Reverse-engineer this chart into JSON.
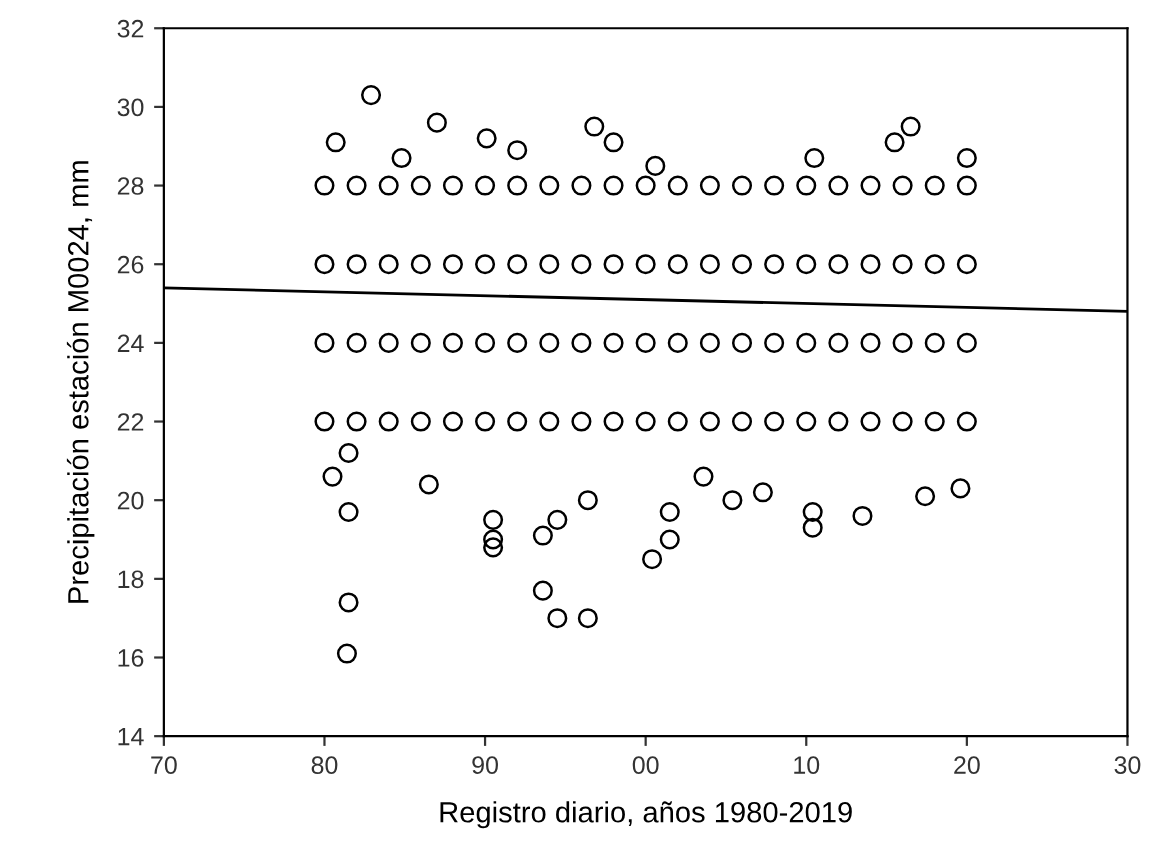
{
  "chart_data": {
    "type": "scatter",
    "xlabel": "Registro diario, años 1980-2019",
    "ylabel": "Precipitación estación M0024, mm",
    "xlim": [
      1970,
      2030
    ],
    "xticks": [
      {
        "value": 1970,
        "label": "70"
      },
      {
        "value": 1980,
        "label": "80"
      },
      {
        "value": 1990,
        "label": "90"
      },
      {
        "value": 2000,
        "label": "00"
      },
      {
        "value": 2010,
        "label": "10"
      },
      {
        "value": 2020,
        "label": "20"
      },
      {
        "value": 2030,
        "label": "30"
      }
    ],
    "ylim": [
      14,
      32
    ],
    "yticks": [
      14,
      16,
      18,
      20,
      22,
      24,
      26,
      28,
      30,
      32
    ],
    "grid": false,
    "legend": false,
    "marker": "circle",
    "series": [
      {
        "color": "#000000",
        "x": [
          1980,
          1982,
          1984,
          1986,
          1988,
          1990,
          1992,
          1994,
          1996,
          1998,
          2000,
          2002,
          2004,
          2006,
          2008,
          2010,
          2012,
          2014,
          2016,
          2018,
          2020,
          1980,
          1982,
          1984,
          1986,
          1988,
          1990,
          1992,
          1994,
          1996,
          1998,
          2000,
          2002,
          2004,
          2006,
          2008,
          2010,
          2012,
          2014,
          2016,
          2018,
          2020,
          1980,
          1982,
          1984,
          1986,
          1988,
          1990,
          1992,
          1994,
          1996,
          1998,
          2000,
          2002,
          2004,
          2006,
          2008,
          2010,
          2012,
          2014,
          2016,
          2018,
          2020,
          1980,
          1982,
          1984,
          1986,
          1988,
          1990,
          1992,
          1994,
          1996,
          1998,
          2000,
          2002,
          2004,
          2006,
          2008,
          2010,
          2012,
          2014,
          2016,
          2018,
          2020,
          1980.5,
          1981.5,
          1981.5,
          1981.4,
          1981.5,
          1982.9,
          1986.5,
          1990.5,
          1990.5,
          1990.5,
          1993.6,
          1993.6,
          1994.5,
          1996.4,
          1996.4,
          1994.5,
          2000.4,
          2001.5,
          2001.5,
          2003.6,
          2005.4,
          2007.3,
          2010.4,
          2010.4,
          2013.5,
          2017.4,
          2019.6,
          1987,
          1990.1,
          1992,
          1996.8,
          1998,
          2000.6,
          2010.5,
          2016.5,
          2015.5,
          2020,
          1980.7,
          1984.8
        ],
        "values": [
          22,
          22,
          22,
          22,
          22,
          22,
          22,
          22,
          22,
          22,
          22,
          22,
          22,
          22,
          22,
          22,
          22,
          22,
          22,
          22,
          22,
          24,
          24,
          24,
          24,
          24,
          24,
          24,
          24,
          24,
          24,
          24,
          24,
          24,
          24,
          24,
          24,
          24,
          24,
          24,
          24,
          24,
          26,
          26,
          26,
          26,
          26,
          26,
          26,
          26,
          26,
          26,
          26,
          26,
          26,
          26,
          26,
          26,
          26,
          26,
          26,
          26,
          26,
          28,
          28,
          28,
          28,
          28,
          28,
          28,
          28,
          28,
          28,
          28,
          28,
          28,
          28,
          28,
          28,
          28,
          28,
          28,
          28,
          28,
          20.6,
          19.7,
          17.4,
          16.1,
          21.2,
          30.3,
          20.4,
          19.5,
          19.0,
          18.8,
          17.7,
          19.1,
          17.0,
          17.0,
          20.0,
          19.5,
          18.5,
          19.7,
          19.0,
          20.6,
          20.0,
          20.2,
          19.3,
          19.7,
          19.6,
          20.1,
          20.3,
          29.6,
          29.2,
          28.9,
          29.5,
          29.1,
          28.5,
          28.7,
          29.5,
          29.1,
          28.7,
          29.1,
          28.7
        ]
      },
      {
        "type": "line",
        "color": "#000000",
        "x": [
          1970,
          2030
        ],
        "values": [
          25.4,
          24.8
        ],
        "marker": "none",
        "line_style": "solid"
      }
    ]
  }
}
